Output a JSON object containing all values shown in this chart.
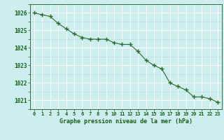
{
  "x": [
    0,
    1,
    2,
    3,
    4,
    5,
    6,
    7,
    8,
    9,
    10,
    11,
    12,
    13,
    14,
    15,
    16,
    17,
    18,
    19,
    20,
    21,
    22,
    23
  ],
  "y": [
    1026.0,
    1025.9,
    1025.8,
    1025.4,
    1025.1,
    1024.8,
    1024.6,
    1024.5,
    1024.5,
    1024.5,
    1024.3,
    1024.2,
    1024.2,
    1023.8,
    1023.3,
    1023.0,
    1022.8,
    1022.0,
    1021.8,
    1021.6,
    1021.2,
    1021.2,
    1021.1,
    1020.9
  ],
  "line_color": "#2d6a2d",
  "marker_color": "#2d6a2d",
  "bg_color": "#cceeee",
  "grid_color_major": "#ffffff",
  "grid_color_minor": "#aadddd",
  "xlabel": "Graphe pression niveau de la mer (hPa)",
  "xlabel_color": "#1a5c1a",
  "tick_color": "#1a5c1a",
  "xlim": [
    -0.5,
    23.5
  ],
  "ylim": [
    1020.5,
    1026.5
  ],
  "yticks": [
    1021,
    1022,
    1023,
    1024,
    1025,
    1026
  ],
  "xticks": [
    0,
    1,
    2,
    3,
    4,
    5,
    6,
    7,
    8,
    9,
    10,
    11,
    12,
    13,
    14,
    15,
    16,
    17,
    18,
    19,
    20,
    21,
    22,
    23
  ],
  "title_color": "#1a5c1a"
}
